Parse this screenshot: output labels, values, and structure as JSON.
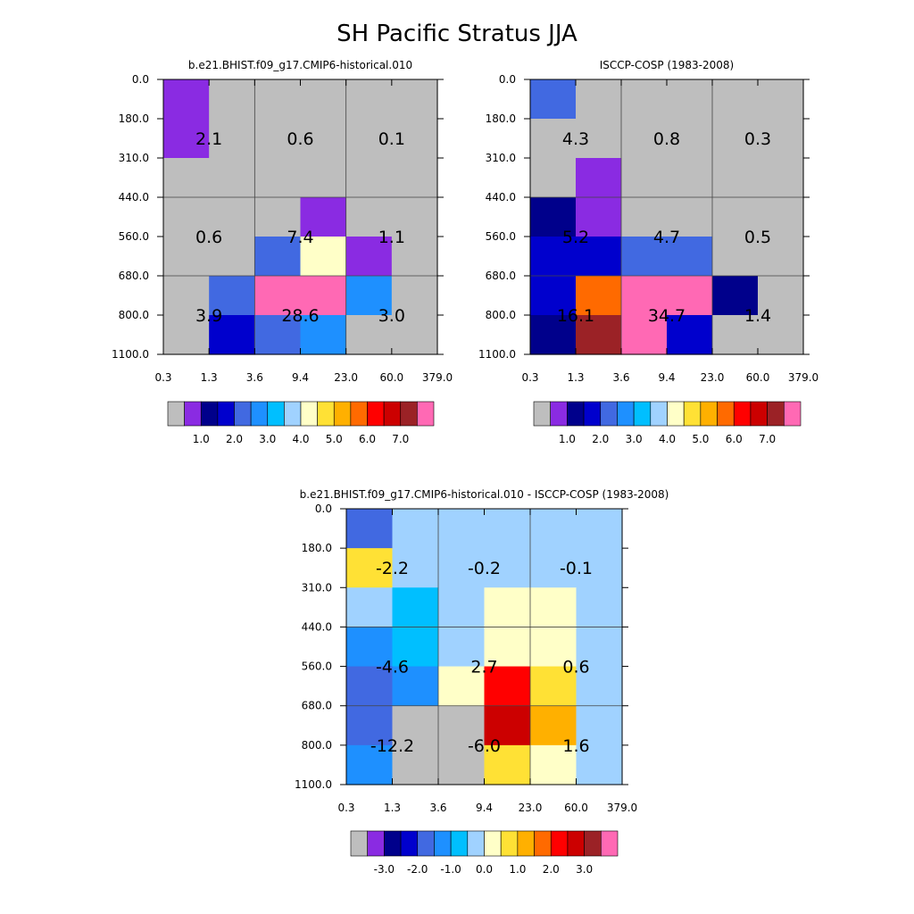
{
  "title": "SH Pacific Stratus JJA",
  "chart_data": [
    {
      "type": "heatmap",
      "title": "b.e21.BHIST.f09_g17.CMIP6-historical.010",
      "x_ticks": [
        "0.3",
        "1.3",
        "3.6",
        "9.4",
        "23.0",
        "60.0",
        "379.0"
      ],
      "y_ticks": [
        "0.0",
        "180.0",
        "310.0",
        "440.0",
        "560.0",
        "680.0",
        "800.0",
        "1100.0"
      ],
      "cell_colors": [
        [
          "#8a2be2",
          "#bebebe",
          "#bebebe",
          "#bebebe",
          "#bebebe",
          "#bebebe"
        ],
        [
          "#8a2be2",
          "#bebebe",
          "#bebebe",
          "#bebebe",
          "#bebebe",
          "#bebebe"
        ],
        [
          "#bebebe",
          "#bebebe",
          "#bebebe",
          "#bebebe",
          "#bebebe",
          "#bebebe"
        ],
        [
          "#bebebe",
          "#bebebe",
          "#bebebe",
          "#8a2be2",
          "#bebebe",
          "#bebebe"
        ],
        [
          "#bebebe",
          "#bebebe",
          "#4169e1",
          "#ffffc8",
          "#8a2be2",
          "#bebebe"
        ],
        [
          "#bebebe",
          "#4169e1",
          "#ff69b4",
          "#ff69b4",
          "#1e90ff",
          "#bebebe"
        ],
        [
          "#bebebe",
          "#0000cd",
          "#4169e1",
          "#1e90ff",
          "#bebebe",
          "#bebebe"
        ]
      ],
      "block_values": [
        [
          "2.1",
          "0.6",
          "0.1"
        ],
        [
          "0.6",
          "7.4",
          "1.1"
        ],
        [
          "3.9",
          "28.6",
          "3.0"
        ]
      ],
      "colorbar": {
        "colors": [
          "#bebebe",
          "#8a2be2",
          "#00008b",
          "#0000cd",
          "#4169e1",
          "#1e90ff",
          "#00bfff",
          "#a0d2ff",
          "#ffffc8",
          "#ffe135",
          "#ffb000",
          "#ff6a00",
          "#ff0000",
          "#cc0000",
          "#9b2226",
          "#ff69b4"
        ],
        "labels": [
          "1.0",
          "2.0",
          "3.0",
          "4.0",
          "5.0",
          "6.0",
          "7.0"
        ],
        "label_boundaries": [
          2,
          4,
          6,
          8,
          10,
          12,
          14
        ]
      }
    },
    {
      "type": "heatmap",
      "title": "ISCCP-COSP (1983-2008)",
      "x_ticks": [
        "0.3",
        "1.3",
        "3.6",
        "9.4",
        "23.0",
        "60.0",
        "379.0"
      ],
      "y_ticks": [
        "0.0",
        "180.0",
        "310.0",
        "440.0",
        "560.0",
        "680.0",
        "800.0",
        "1100.0"
      ],
      "cell_colors": [
        [
          "#4169e1",
          "#bebebe",
          "#bebebe",
          "#bebebe",
          "#bebebe",
          "#bebebe"
        ],
        [
          "#bebebe",
          "#bebebe",
          "#bebebe",
          "#bebebe",
          "#bebebe",
          "#bebebe"
        ],
        [
          "#bebebe",
          "#8a2be2",
          "#bebebe",
          "#bebebe",
          "#bebebe",
          "#bebebe"
        ],
        [
          "#00008b",
          "#8a2be2",
          "#bebebe",
          "#bebebe",
          "#bebebe",
          "#bebebe"
        ],
        [
          "#0000cd",
          "#0000cd",
          "#4169e1",
          "#4169e1",
          "#bebebe",
          "#bebebe"
        ],
        [
          "#0000cd",
          "#ff6a00",
          "#ff69b4",
          "#ff69b4",
          "#00008b",
          "#bebebe"
        ],
        [
          "#00008b",
          "#9b2226",
          "#ff69b4",
          "#0000cd",
          "#bebebe",
          "#bebebe"
        ]
      ],
      "block_values": [
        [
          "4.3",
          "0.8",
          "0.3"
        ],
        [
          "5.2",
          "4.7",
          "0.5"
        ],
        [
          "16.1",
          "34.7",
          "1.4"
        ]
      ],
      "colorbar": {
        "colors": [
          "#bebebe",
          "#8a2be2",
          "#00008b",
          "#0000cd",
          "#4169e1",
          "#1e90ff",
          "#00bfff",
          "#a0d2ff",
          "#ffffc8",
          "#ffe135",
          "#ffb000",
          "#ff6a00",
          "#ff0000",
          "#cc0000",
          "#9b2226",
          "#ff69b4"
        ],
        "labels": [
          "1.0",
          "2.0",
          "3.0",
          "4.0",
          "5.0",
          "6.0",
          "7.0"
        ],
        "label_boundaries": [
          2,
          4,
          6,
          8,
          10,
          12,
          14
        ]
      }
    },
    {
      "type": "heatmap",
      "title": "b.e21.BHIST.f09_g17.CMIP6-historical.010 - ISCCP-COSP (1983-2008)",
      "x_ticks": [
        "0.3",
        "1.3",
        "3.6",
        "9.4",
        "23.0",
        "60.0",
        "379.0"
      ],
      "y_ticks": [
        "0.0",
        "180.0",
        "310.0",
        "440.0",
        "560.0",
        "680.0",
        "800.0",
        "1100.0"
      ],
      "cell_colors": [
        [
          "#4169e1",
          "#a0d2ff",
          "#a0d2ff",
          "#a0d2ff",
          "#a0d2ff",
          "#a0d2ff"
        ],
        [
          "#ffe135",
          "#a0d2ff",
          "#a0d2ff",
          "#a0d2ff",
          "#a0d2ff",
          "#a0d2ff"
        ],
        [
          "#a0d2ff",
          "#00bfff",
          "#a0d2ff",
          "#ffffc8",
          "#ffffc8",
          "#a0d2ff"
        ],
        [
          "#1e90ff",
          "#00bfff",
          "#a0d2ff",
          "#ffffc8",
          "#ffffc8",
          "#a0d2ff"
        ],
        [
          "#4169e1",
          "#1e90ff",
          "#ffffc8",
          "#ff0000",
          "#ffe135",
          "#a0d2ff"
        ],
        [
          "#4169e1",
          "#bebebe",
          "#bebebe",
          "#cc0000",
          "#ffb000",
          "#a0d2ff"
        ],
        [
          "#1e90ff",
          "#bebebe",
          "#bebebe",
          "#ffe135",
          "#ffffc8",
          "#a0d2ff"
        ]
      ],
      "block_values": [
        [
          "-2.2",
          "-0.2",
          "-0.1"
        ],
        [
          "-4.6",
          "2.7",
          "0.6"
        ],
        [
          "-12.2",
          "-6.0",
          "1.6"
        ]
      ],
      "colorbar": {
        "colors": [
          "#bebebe",
          "#8a2be2",
          "#00008b",
          "#0000cd",
          "#4169e1",
          "#1e90ff",
          "#00bfff",
          "#a0d2ff",
          "#ffffc8",
          "#ffe135",
          "#ffb000",
          "#ff6a00",
          "#ff0000",
          "#cc0000",
          "#9b2226",
          "#ff69b4"
        ],
        "labels": [
          "-3.0",
          "-2.0",
          "-1.0",
          "0.0",
          "1.0",
          "2.0",
          "3.0"
        ],
        "label_boundaries": [
          2,
          4,
          6,
          8,
          10,
          12,
          14
        ]
      }
    }
  ]
}
